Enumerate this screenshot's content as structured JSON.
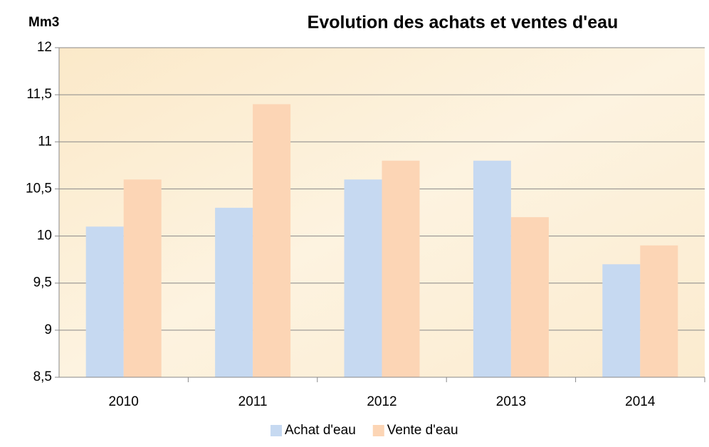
{
  "chart_data": {
    "type": "bar",
    "title": "Evolution des achats et ventes d'eau",
    "y_label": "Mm3",
    "categories": [
      "2010",
      "2011",
      "2012",
      "2013",
      "2014"
    ],
    "series": [
      {
        "name": "Achat d'eau",
        "color": "#c6d9f1",
        "values": [
          10.1,
          10.3,
          10.6,
          10.8,
          9.7
        ]
      },
      {
        "name": "Vente d'eau",
        "color": "#fcd5b5",
        "values": [
          10.6,
          11.4,
          10.8,
          10.2,
          9.9
        ]
      }
    ],
    "ylim": [
      8.5,
      12
    ],
    "yticks": [
      {
        "value": 8.5,
        "label": "8,5"
      },
      9,
      {
        "value": 9.5,
        "label": "9,5"
      },
      10,
      {
        "value": 10.5,
        "label": "10,5"
      },
      11,
      {
        "value": 11.5,
        "label": "11,5"
      },
      12
    ],
    "grid": true,
    "legend": "bottom"
  }
}
